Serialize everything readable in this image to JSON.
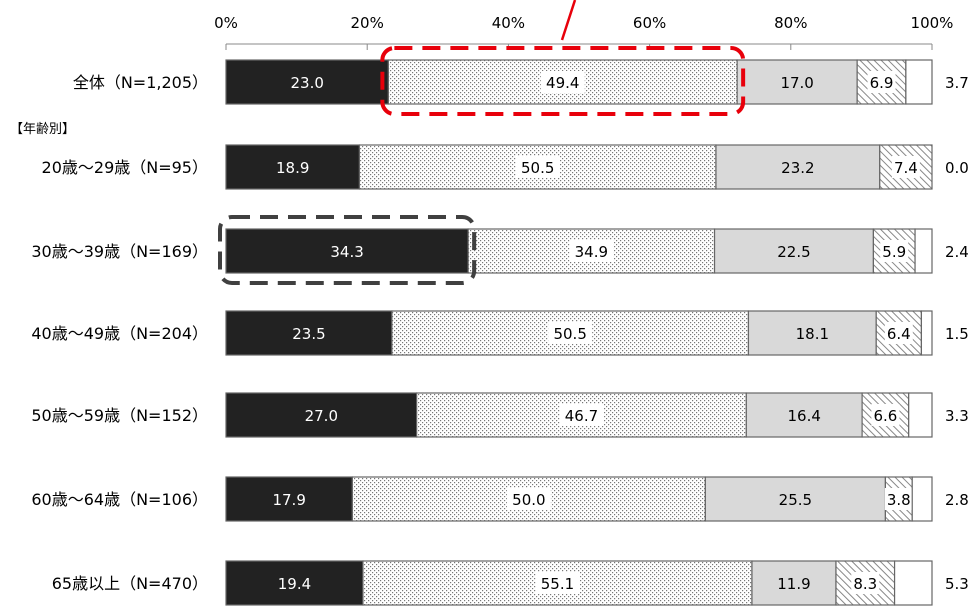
{
  "chart_data": {
    "type": "bar",
    "orientation": "horizontal",
    "stacked": true,
    "xlim": [
      0,
      100
    ],
    "x_ticks": [
      "0%",
      "20%",
      "40%",
      "60%",
      "80%",
      "100%"
    ],
    "group_header": "【年齢別】",
    "categories": [
      "全体（N=1,205）",
      "20歳～29歳（N=95）",
      "30歳～39歳（N=169）",
      "40歳～49歳（N=204）",
      "50歳～59歳（N=152）",
      "60歳～64歳（N=106）",
      "65歳以上（N=470）"
    ],
    "series": [
      {
        "values": [
          23.0,
          18.9,
          34.3,
          23.5,
          27.0,
          17.9,
          19.4
        ],
        "color": "#222222",
        "pattern": "solid-dark"
      },
      {
        "values": [
          49.4,
          50.5,
          34.9,
          50.5,
          46.7,
          50.0,
          55.1
        ],
        "color": "#e0e0e0",
        "pattern": "dots"
      },
      {
        "values": [
          17.0,
          23.2,
          22.5,
          18.1,
          16.4,
          25.5,
          11.9
        ],
        "color": "#d9d9d9",
        "pattern": "solid-light"
      },
      {
        "values": [
          6.9,
          7.4,
          5.9,
          6.4,
          6.6,
          3.8,
          8.3
        ],
        "color": "#ffffff",
        "pattern": "diagonal-hatch"
      },
      {
        "values": [
          3.7,
          0.0,
          2.4,
          1.5,
          3.3,
          2.8,
          5.3
        ],
        "color": "#ffffff",
        "pattern": "white"
      }
    ],
    "labels": [
      [
        "23.0",
        "49.4",
        "17.0",
        "6.9",
        "3.7"
      ],
      [
        "18.9",
        "50.5",
        "23.2",
        "7.4",
        "0.0"
      ],
      [
        "34.3",
        "34.9",
        "22.5",
        "5.9",
        "2.4"
      ],
      [
        "23.5",
        "50.5",
        "18.1",
        "6.4",
        "1.5"
      ],
      [
        "27.0",
        "46.7",
        "16.4",
        "6.6",
        "3.3"
      ],
      [
        "17.9",
        "50.0",
        "25.5",
        "3.8",
        "2.8"
      ],
      [
        "19.4",
        "55.1",
        "11.9",
        "8.3",
        "5.3"
      ]
    ],
    "highlights": [
      {
        "row": 0,
        "segment": 1,
        "color": "#e8000b",
        "style": "dashed"
      },
      {
        "row": 2,
        "segment": 0,
        "color": "#404040",
        "style": "dashed"
      }
    ]
  }
}
